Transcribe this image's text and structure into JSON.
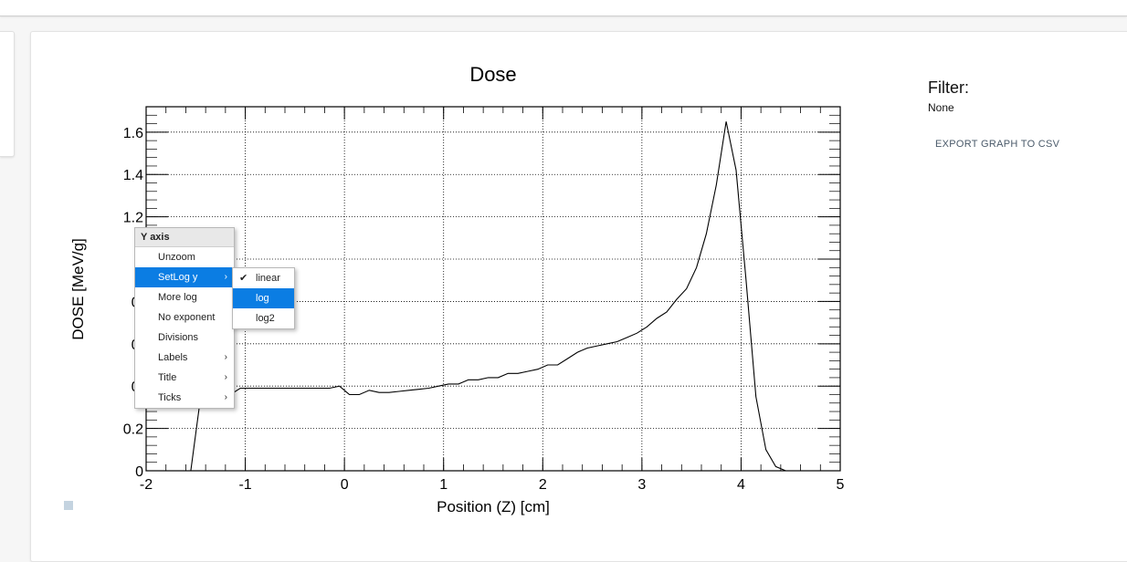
{
  "chart_data": {
    "type": "line",
    "title": "Dose",
    "xlabel": "Position (Z) [cm]",
    "ylabel": "DOSE [MeV/g]",
    "xlim": [
      -2,
      5
    ],
    "ylim": [
      0,
      1.72
    ],
    "xticks": [
      -2,
      -1,
      0,
      1,
      2,
      3,
      4,
      5
    ],
    "xtick_labels": [
      "-2",
      "-1",
      "0",
      "1",
      "2",
      "3",
      "4",
      "5"
    ],
    "yticks": [
      0,
      0.2,
      0.4,
      0.6,
      0.8,
      1.0,
      1.2,
      1.4,
      1.6
    ],
    "ytick_labels": [
      "0",
      "0.2",
      "0.",
      "0.",
      "0.",
      "",
      "1.2",
      "1.4",
      "1.6"
    ],
    "grid": true,
    "series": [
      {
        "x": [
          -1.55,
          -1.45,
          -1.35,
          -1.25,
          -1.15,
          -1.05,
          -0.95,
          -0.85,
          -0.75,
          -0.65,
          -0.55,
          -0.45,
          -0.35,
          -0.25,
          -0.15,
          -0.05,
          0.05,
          0.15,
          0.25,
          0.35,
          0.45,
          0.55,
          0.65,
          0.75,
          0.85,
          0.95,
          1.05,
          1.15,
          1.25,
          1.35,
          1.45,
          1.55,
          1.65,
          1.75,
          1.85,
          1.95,
          2.05,
          2.15,
          2.25,
          2.35,
          2.45,
          2.55,
          2.65,
          2.75,
          2.85,
          2.95,
          3.05,
          3.15,
          3.25,
          3.35,
          3.45,
          3.55,
          3.65,
          3.75,
          3.85,
          3.95,
          4.05,
          4.15,
          4.25,
          4.35,
          4.45,
          4.55
        ],
        "y": [
          0.0,
          0.35,
          0.36,
          0.36,
          0.36,
          0.39,
          0.39,
          0.39,
          0.39,
          0.39,
          0.39,
          0.39,
          0.39,
          0.39,
          0.39,
          0.4,
          0.36,
          0.36,
          0.38,
          0.37,
          0.37,
          0.375,
          0.38,
          0.385,
          0.39,
          0.4,
          0.41,
          0.41,
          0.43,
          0.43,
          0.44,
          0.44,
          0.46,
          0.46,
          0.47,
          0.48,
          0.5,
          0.5,
          0.53,
          0.56,
          0.58,
          0.59,
          0.6,
          0.61,
          0.63,
          0.65,
          0.68,
          0.72,
          0.75,
          0.81,
          0.86,
          0.96,
          1.12,
          1.35,
          1.65,
          1.42,
          0.9,
          0.35,
          0.1,
          0.02,
          0.0,
          0.0
        ]
      }
    ]
  },
  "side_panel": {
    "filter_label": "Filter:",
    "filter_value": "None",
    "export_label": "EXPORT GRAPH TO CSV"
  },
  "context_menu": {
    "header": "Y axis",
    "items": [
      {
        "label": "Unzoom",
        "arrow": ""
      },
      {
        "label": "SetLog y",
        "arrow": "›"
      },
      {
        "label": "More log",
        "arrow": ""
      },
      {
        "label": "No exponent",
        "arrow": ""
      },
      {
        "label": "Divisions",
        "arrow": ""
      },
      {
        "label": "Labels",
        "arrow": "›"
      },
      {
        "label": "Title",
        "arrow": "›"
      },
      {
        "label": "Ticks",
        "arrow": "›"
      }
    ],
    "submenu": {
      "items": [
        {
          "label": "linear",
          "check": "✔"
        },
        {
          "label": "log",
          "check": ""
        },
        {
          "label": "log2",
          "check": ""
        }
      ]
    }
  }
}
